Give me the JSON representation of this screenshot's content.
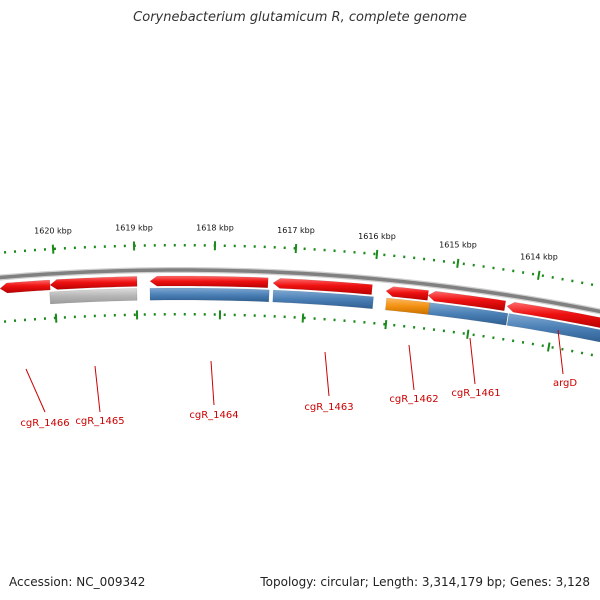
{
  "title": "Corynebacterium glutamicum R, complete genome",
  "accession_label": "Accession: NC_009342",
  "summary_label": "Topology: circular; Length: 3,314,179 bp; Genes: 3,128",
  "colors": {
    "gene_red": "#ee1111",
    "cds_blue": "#4a7fb5",
    "pseudo_gray": "#b5b5b5",
    "rna_orange": "#f29111",
    "backbone": "#808080",
    "tick_green": "#1a8a1a",
    "label_red": "#cc0000"
  },
  "scale_labels": [
    "1620 kbp",
    "1619 kbp",
    "1618 kbp",
    "1617 kbp",
    "1616 kbp",
    "1615 kbp",
    "1614 kbp"
  ],
  "gene_labels": [
    "cgR_1466",
    "cgR_1465",
    "cgR_1464",
    "cgR_1463",
    "cgR_1462",
    "cgR_1461",
    "argD"
  ]
}
